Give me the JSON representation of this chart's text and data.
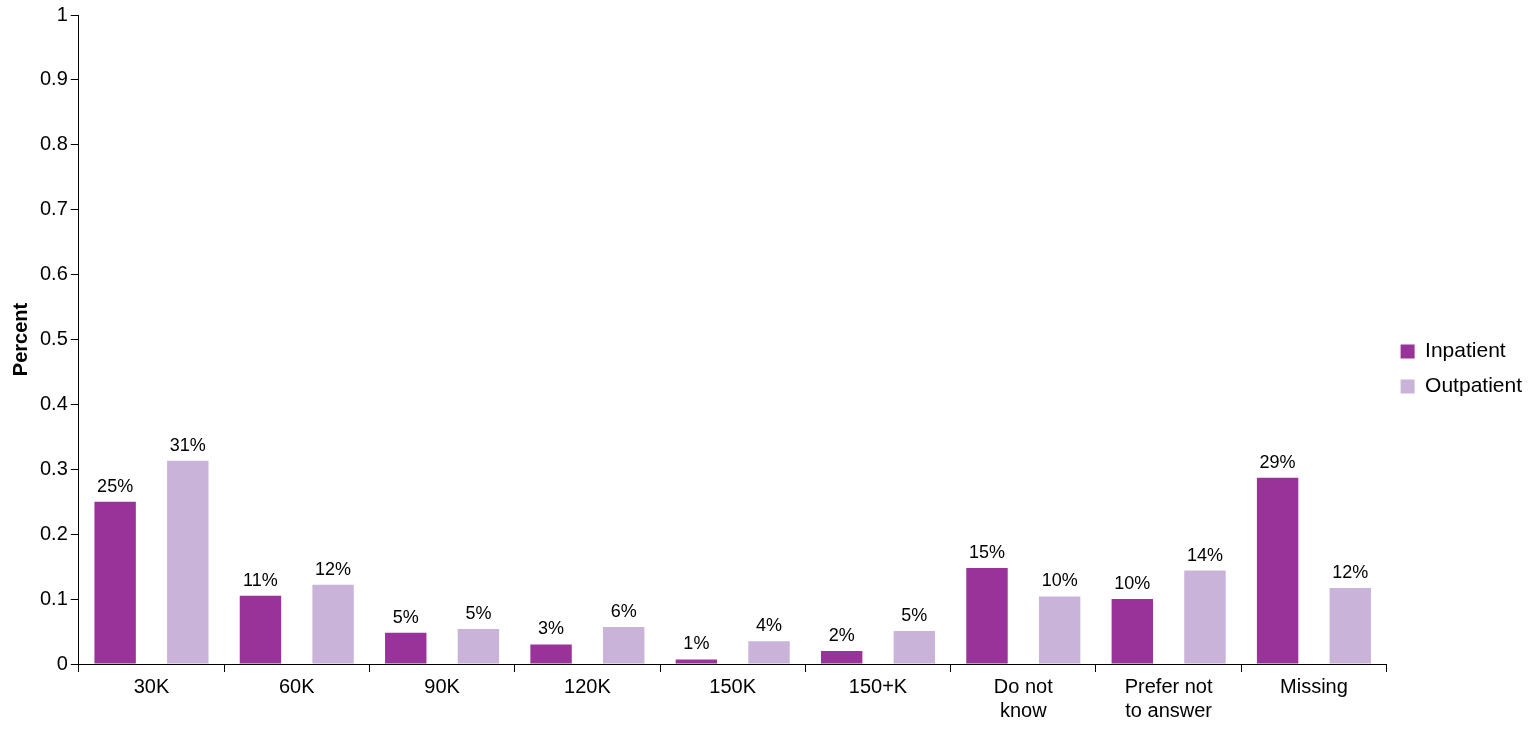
{
  "chart_data": {
    "type": "bar",
    "ylabel": "Percent",
    "categories": [
      "30K",
      "60K",
      "90K",
      "120K",
      "150K",
      "150+K",
      "Do not know",
      "Prefer not to answer",
      "Missing"
    ],
    "series": [
      {
        "name": "Inpatient",
        "color": "#993399",
        "values": [
          0.25,
          0.105,
          0.048,
          0.03,
          0.007,
          0.02,
          0.148,
          0.1,
          0.287
        ],
        "value_labels": [
          "25%",
          "11%",
          "5%",
          "3%",
          "1%",
          "2%",
          "15%",
          "10%",
          "29%"
        ]
      },
      {
        "name": "Outpatient",
        "color": "#c9b3d9",
        "values": [
          0.313,
          0.122,
          0.054,
          0.057,
          0.035,
          0.051,
          0.104,
          0.144,
          0.117
        ],
        "value_labels": [
          "31%",
          "12%",
          "5%",
          "6%",
          "4%",
          "5%",
          "10%",
          "14%",
          "12%"
        ]
      }
    ],
    "ylim": [
      0,
      1
    ],
    "yticks": [
      0,
      0.1,
      0.2,
      0.3,
      0.4,
      0.5,
      0.6,
      0.7,
      0.8,
      0.9,
      1
    ],
    "grid": false,
    "legend": "right"
  }
}
